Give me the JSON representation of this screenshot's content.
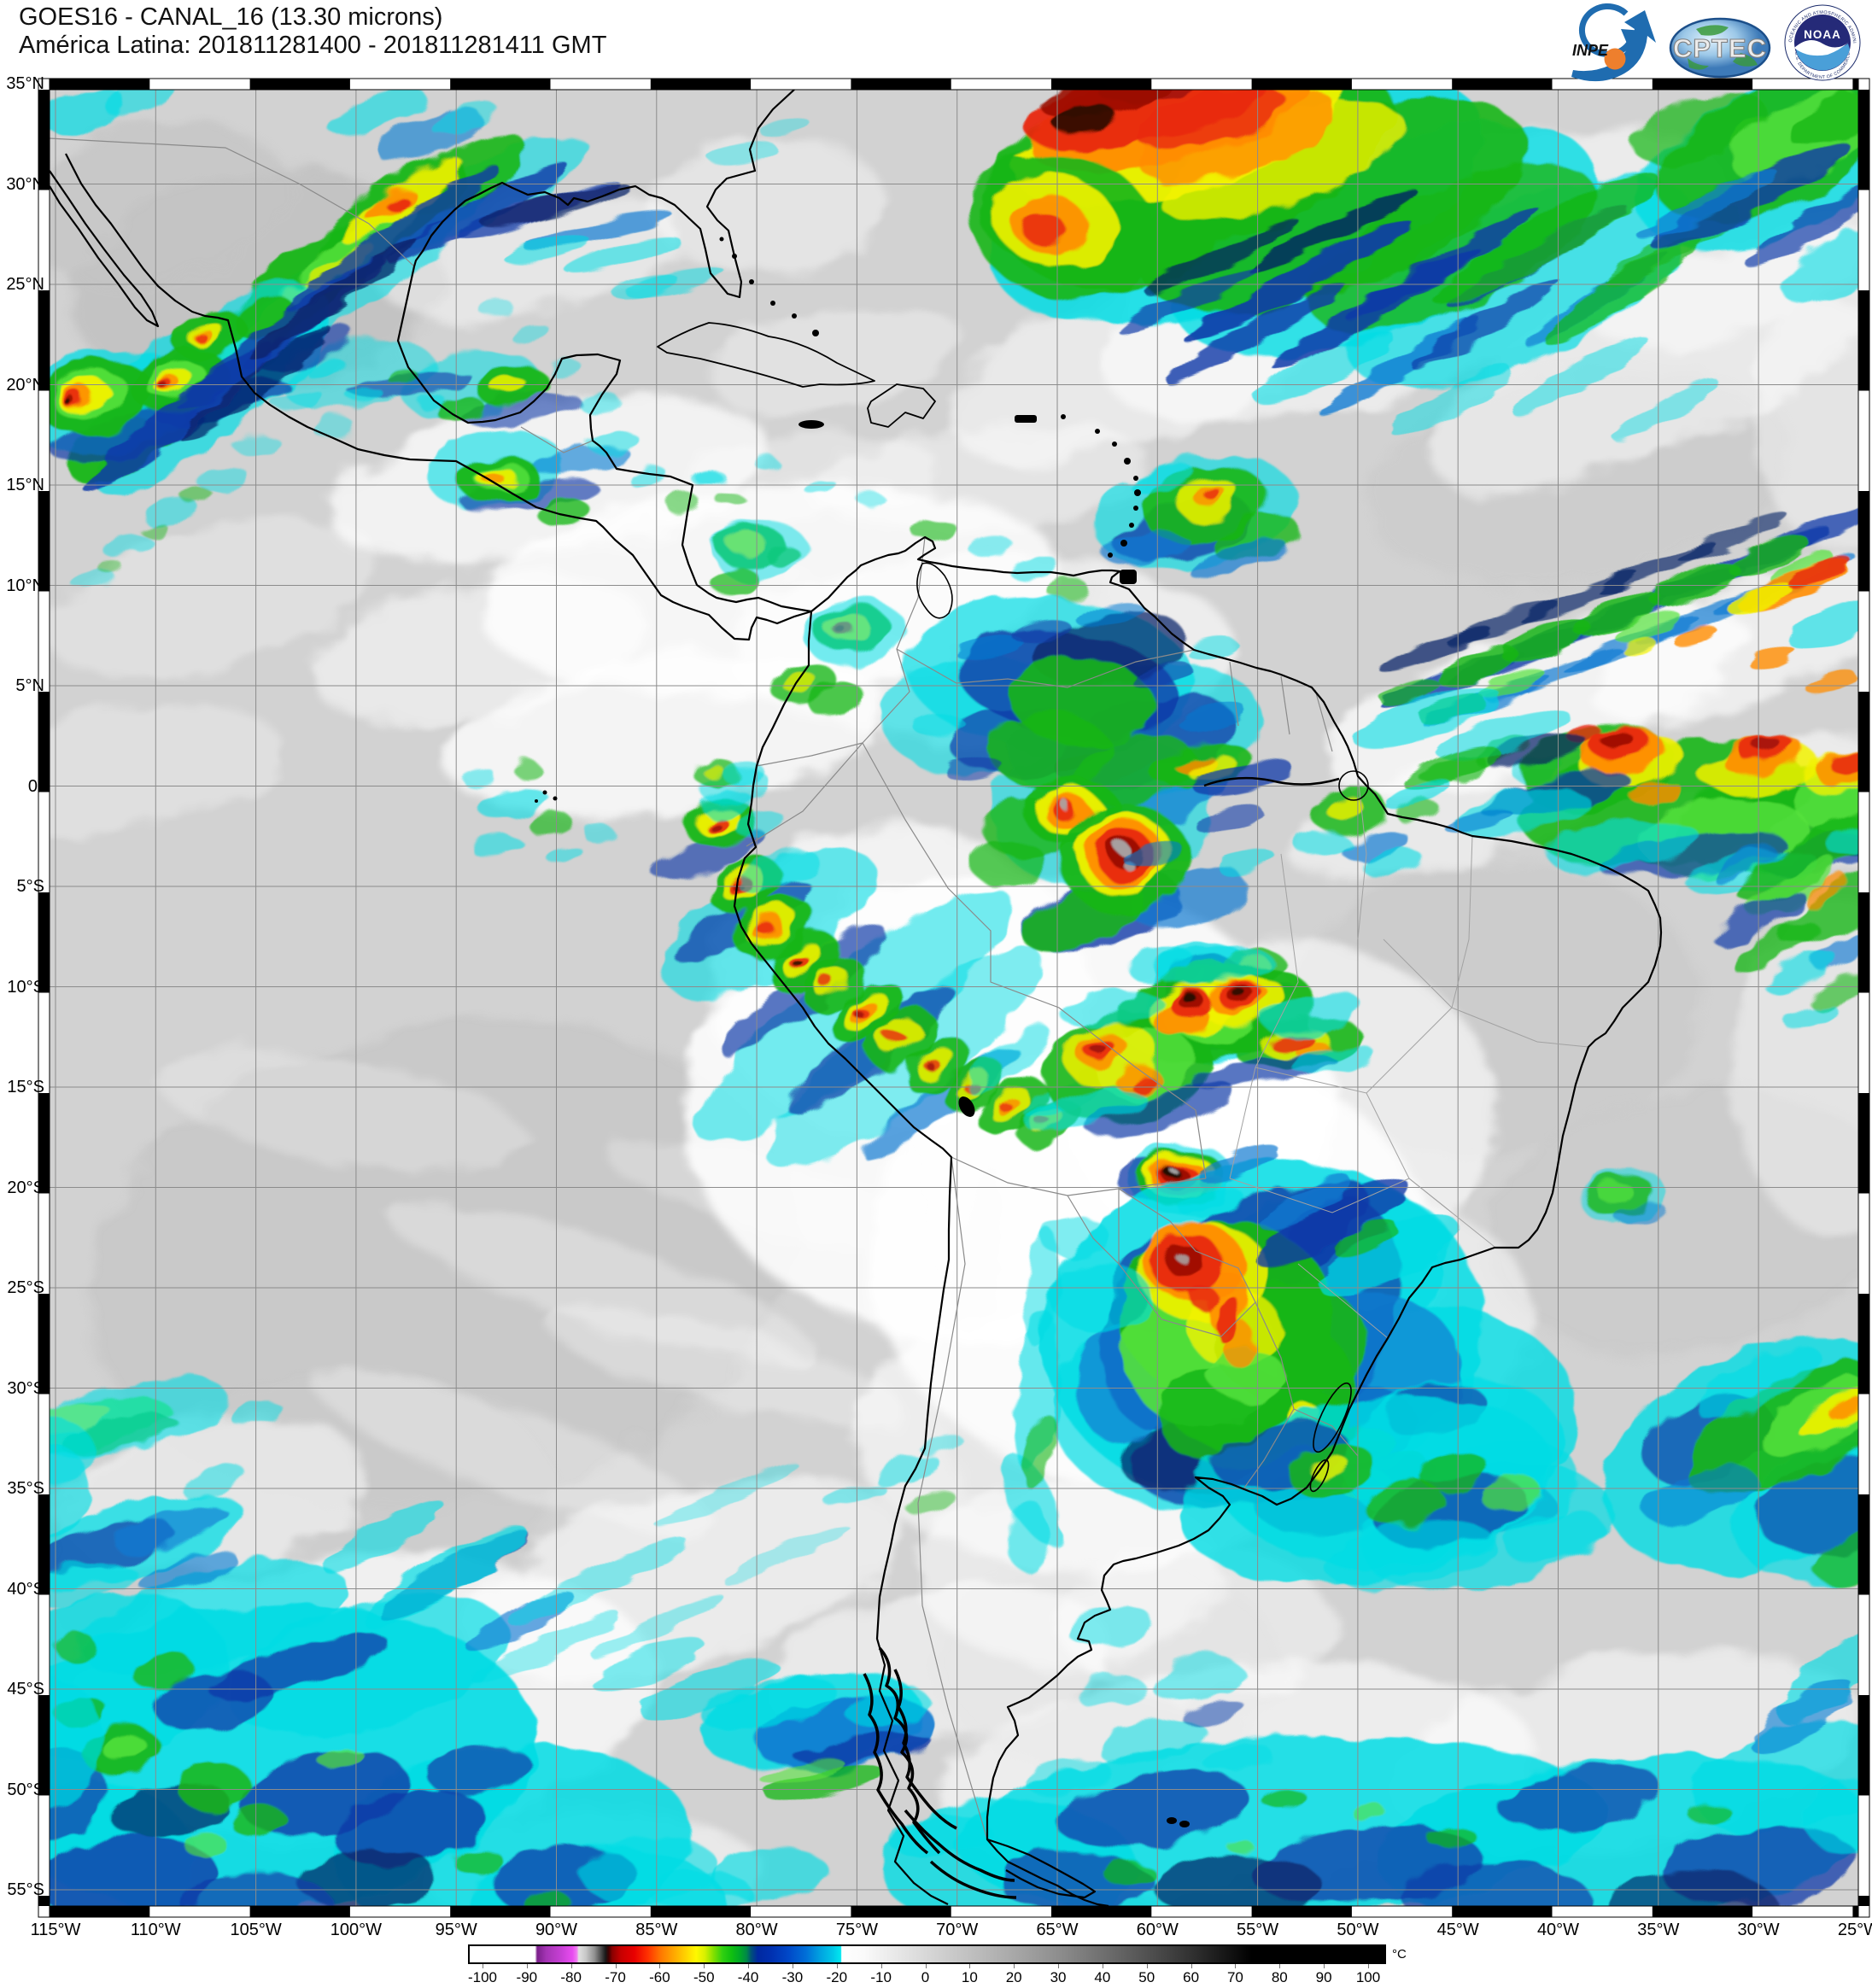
{
  "header": {
    "title_line1": "GOES16 - CANAL_16 (13.30 microns)",
    "title_line2": "América Latina: 201811281400 - 201811281411 GMT",
    "logos": [
      {
        "name": "inpe-logo",
        "label": "INPE"
      },
      {
        "name": "cptec-logo",
        "label": "CPTEC"
      },
      {
        "name": "noaa-logo",
        "label": "NOAA",
        "ring_text_top": "NATIONAL OCEANIC AND ATMOSPHERIC ADMINISTRATION",
        "ring_text_bottom": "U.S. DEPARTMENT OF COMMERCE"
      }
    ]
  },
  "map": {
    "lat_labels": [
      "35°N",
      "30°N",
      "25°N",
      "20°N",
      "15°N",
      "10°N",
      "5°N",
      "0°",
      "5°S",
      "10°S",
      "15°S",
      "20°S",
      "25°S",
      "30°S",
      "35°S",
      "40°S",
      "45°S",
      "50°S",
      "55°S"
    ],
    "lon_labels": [
      "115°W",
      "110°W",
      "105°W",
      "100°W",
      "95°W",
      "90°W",
      "85°W",
      "80°W",
      "75°W",
      "70°W",
      "65°W",
      "60°W",
      "55°W",
      "50°W",
      "45°W",
      "40°W",
      "35°W",
      "30°W",
      "25°W"
    ]
  },
  "colorbar": {
    "unit": "°C",
    "range": [
      -103.3,
      104
    ],
    "ticks": [
      "-100",
      "-90",
      "-80",
      "-70",
      "-60",
      "-50",
      "-40",
      "-30",
      "-20",
      "-10",
      "0",
      "10",
      "20",
      "30",
      "40",
      "50",
      "60",
      "70",
      "80",
      "90",
      "100"
    ],
    "stops": [
      [
        -103.3,
        "#ffffff"
      ],
      [
        -88.5,
        "#ffffff"
      ],
      [
        -88,
        "#7a1f8a"
      ],
      [
        -86,
        "#a434b4"
      ],
      [
        -83,
        "#c23ed0"
      ],
      [
        -80,
        "#e84cf0"
      ],
      [
        -79,
        "#f07ef0"
      ],
      [
        -78.6,
        "#e0e0e0"
      ],
      [
        -77,
        "#c8c8c8"
      ],
      [
        -75,
        "#909090"
      ],
      [
        -73.5,
        "#484848"
      ],
      [
        -72.5,
        "#181818"
      ],
      [
        -71.8,
        "#400000"
      ],
      [
        -71,
        "#8a0000"
      ],
      [
        -69,
        "#c80000"
      ],
      [
        -66,
        "#e80000"
      ],
      [
        -63,
        "#ff3000"
      ],
      [
        -60,
        "#ff7800"
      ],
      [
        -57,
        "#ffa800"
      ],
      [
        -54,
        "#ffd800"
      ],
      [
        -52,
        "#fff800"
      ],
      [
        -50,
        "#d8f000"
      ],
      [
        -48,
        "#80e000"
      ],
      [
        -46,
        "#30d010"
      ],
      [
        -44,
        "#10c010"
      ],
      [
        -42,
        "#00a828"
      ],
      [
        -40.5,
        "#008848"
      ],
      [
        -39.5,
        "#005078"
      ],
      [
        -38,
        "#0028a0"
      ],
      [
        -35,
        "#0030b0"
      ],
      [
        -31,
        "#0048c8"
      ],
      [
        -27,
        "#0070d8"
      ],
      [
        -24,
        "#00a0e0"
      ],
      [
        -21,
        "#00c8e8"
      ],
      [
        -19.2,
        "#00e8f0"
      ],
      [
        -19,
        "#ffffff"
      ],
      [
        -14,
        "#fafafa"
      ],
      [
        -10,
        "#f0f0f0"
      ],
      [
        0,
        "#d8d8d8"
      ],
      [
        10,
        "#c0c0c0"
      ],
      [
        20,
        "#a8a8a8"
      ],
      [
        30,
        "#8e8e8e"
      ],
      [
        40,
        "#707070"
      ],
      [
        50,
        "#525252"
      ],
      [
        60,
        "#323232"
      ],
      [
        68,
        "#161616"
      ],
      [
        74,
        "#000000"
      ],
      [
        104,
        "#000000"
      ]
    ]
  }
}
